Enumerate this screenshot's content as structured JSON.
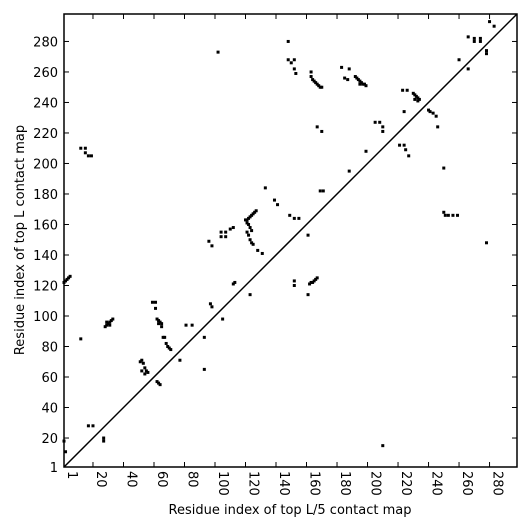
{
  "chart_data": {
    "type": "scatter",
    "xlabel": "Residue index of top L/5 contact map",
    "ylabel": "Residue index of top L contact map",
    "color": "#000000",
    "xlim": [
      1,
      298
    ],
    "ylim": [
      1,
      298
    ],
    "xticks": [
      1,
      20,
      40,
      60,
      80,
      100,
      120,
      140,
      160,
      180,
      200,
      220,
      240,
      260,
      280
    ],
    "yticks": [
      1,
      20,
      40,
      60,
      80,
      100,
      120,
      140,
      160,
      180,
      200,
      220,
      240,
      260,
      280
    ],
    "x": [
      1,
      2,
      3,
      4,
      5,
      2,
      1,
      12,
      15,
      15,
      17,
      19,
      12,
      17,
      20,
      27,
      27,
      28,
      29,
      30,
      31,
      32,
      33,
      29,
      31,
      51,
      52,
      53,
      52,
      54,
      55,
      56,
      54,
      59,
      61,
      61,
      62,
      63,
      64,
      65,
      65,
      63,
      62,
      63,
      64,
      66,
      67,
      68,
      69,
      70,
      71,
      77,
      81,
      85,
      93,
      93,
      96,
      98,
      97,
      98,
      102,
      104,
      107,
      110,
      112,
      104,
      107,
      105,
      112,
      113,
      120,
      121,
      122,
      123,
      124,
      125,
      126,
      127,
      121,
      122,
      123,
      124,
      121,
      122,
      123,
      124,
      125,
      123,
      128,
      131,
      133,
      139,
      141,
      148,
      150,
      152,
      153,
      148,
      152,
      149,
      152,
      155,
      152,
      152,
      161,
      161,
      162,
      163,
      164,
      165,
      166,
      167,
      163,
      164,
      165,
      166,
      167,
      168,
      169,
      170,
      163,
      167,
      170,
      169,
      171,
      183,
      185,
      188,
      187,
      188,
      192,
      193,
      194,
      195,
      196,
      197,
      198,
      199,
      195,
      199,
      205,
      208,
      210,
      210,
      221,
      224,
      225,
      227,
      223,
      226,
      224,
      230,
      231,
      232,
      233,
      234,
      231,
      233,
      240,
      241,
      243,
      245,
      246,
      260,
      266,
      266,
      270,
      270,
      274,
      274,
      278,
      278,
      280,
      283,
      210,
      250,
      250,
      251,
      253,
      256,
      259,
      278
    ],
    "y": [
      122,
      123,
      124,
      125,
      126,
      11,
      18,
      210,
      210,
      207,
      205,
      205,
      85,
      28,
      28,
      20,
      18,
      93,
      94,
      95,
      96,
      97,
      98,
      96,
      94,
      70,
      71,
      69,
      64,
      66,
      64,
      63,
      62,
      109,
      109,
      105,
      98,
      97,
      96,
      95,
      93,
      95,
      57,
      56,
      55,
      86,
      86,
      82,
      80,
      79,
      78,
      71,
      94,
      94,
      86,
      65,
      149,
      146,
      108,
      106,
      273,
      155,
      155,
      157,
      158,
      152,
      152,
      98,
      121,
      122,
      163,
      163,
      164,
      165,
      166,
      167,
      168,
      169,
      161,
      160,
      158,
      156,
      155,
      153,
      150,
      148,
      147,
      114,
      143,
      141,
      184,
      176,
      173,
      268,
      266,
      262,
      259,
      280,
      268,
      166,
      164,
      164,
      123,
      120,
      153,
      114,
      121,
      122,
      122,
      123,
      124,
      125,
      257,
      255,
      254,
      253,
      252,
      251,
      250,
      250,
      260,
      224,
      221,
      182,
      182,
      263,
      256,
      262,
      255,
      195,
      257,
      256,
      255,
      254,
      253,
      252,
      252,
      251,
      252,
      208,
      227,
      227,
      224,
      221,
      212,
      212,
      209,
      205,
      248,
      248,
      234,
      246,
      245,
      244,
      243,
      242,
      242,
      241,
      235,
      234,
      233,
      231,
      224,
      268,
      262,
      283,
      282,
      280,
      282,
      280,
      272,
      274,
      293,
      290,
      15,
      197,
      168,
      166,
      166,
      166,
      166,
      148
    ]
  }
}
